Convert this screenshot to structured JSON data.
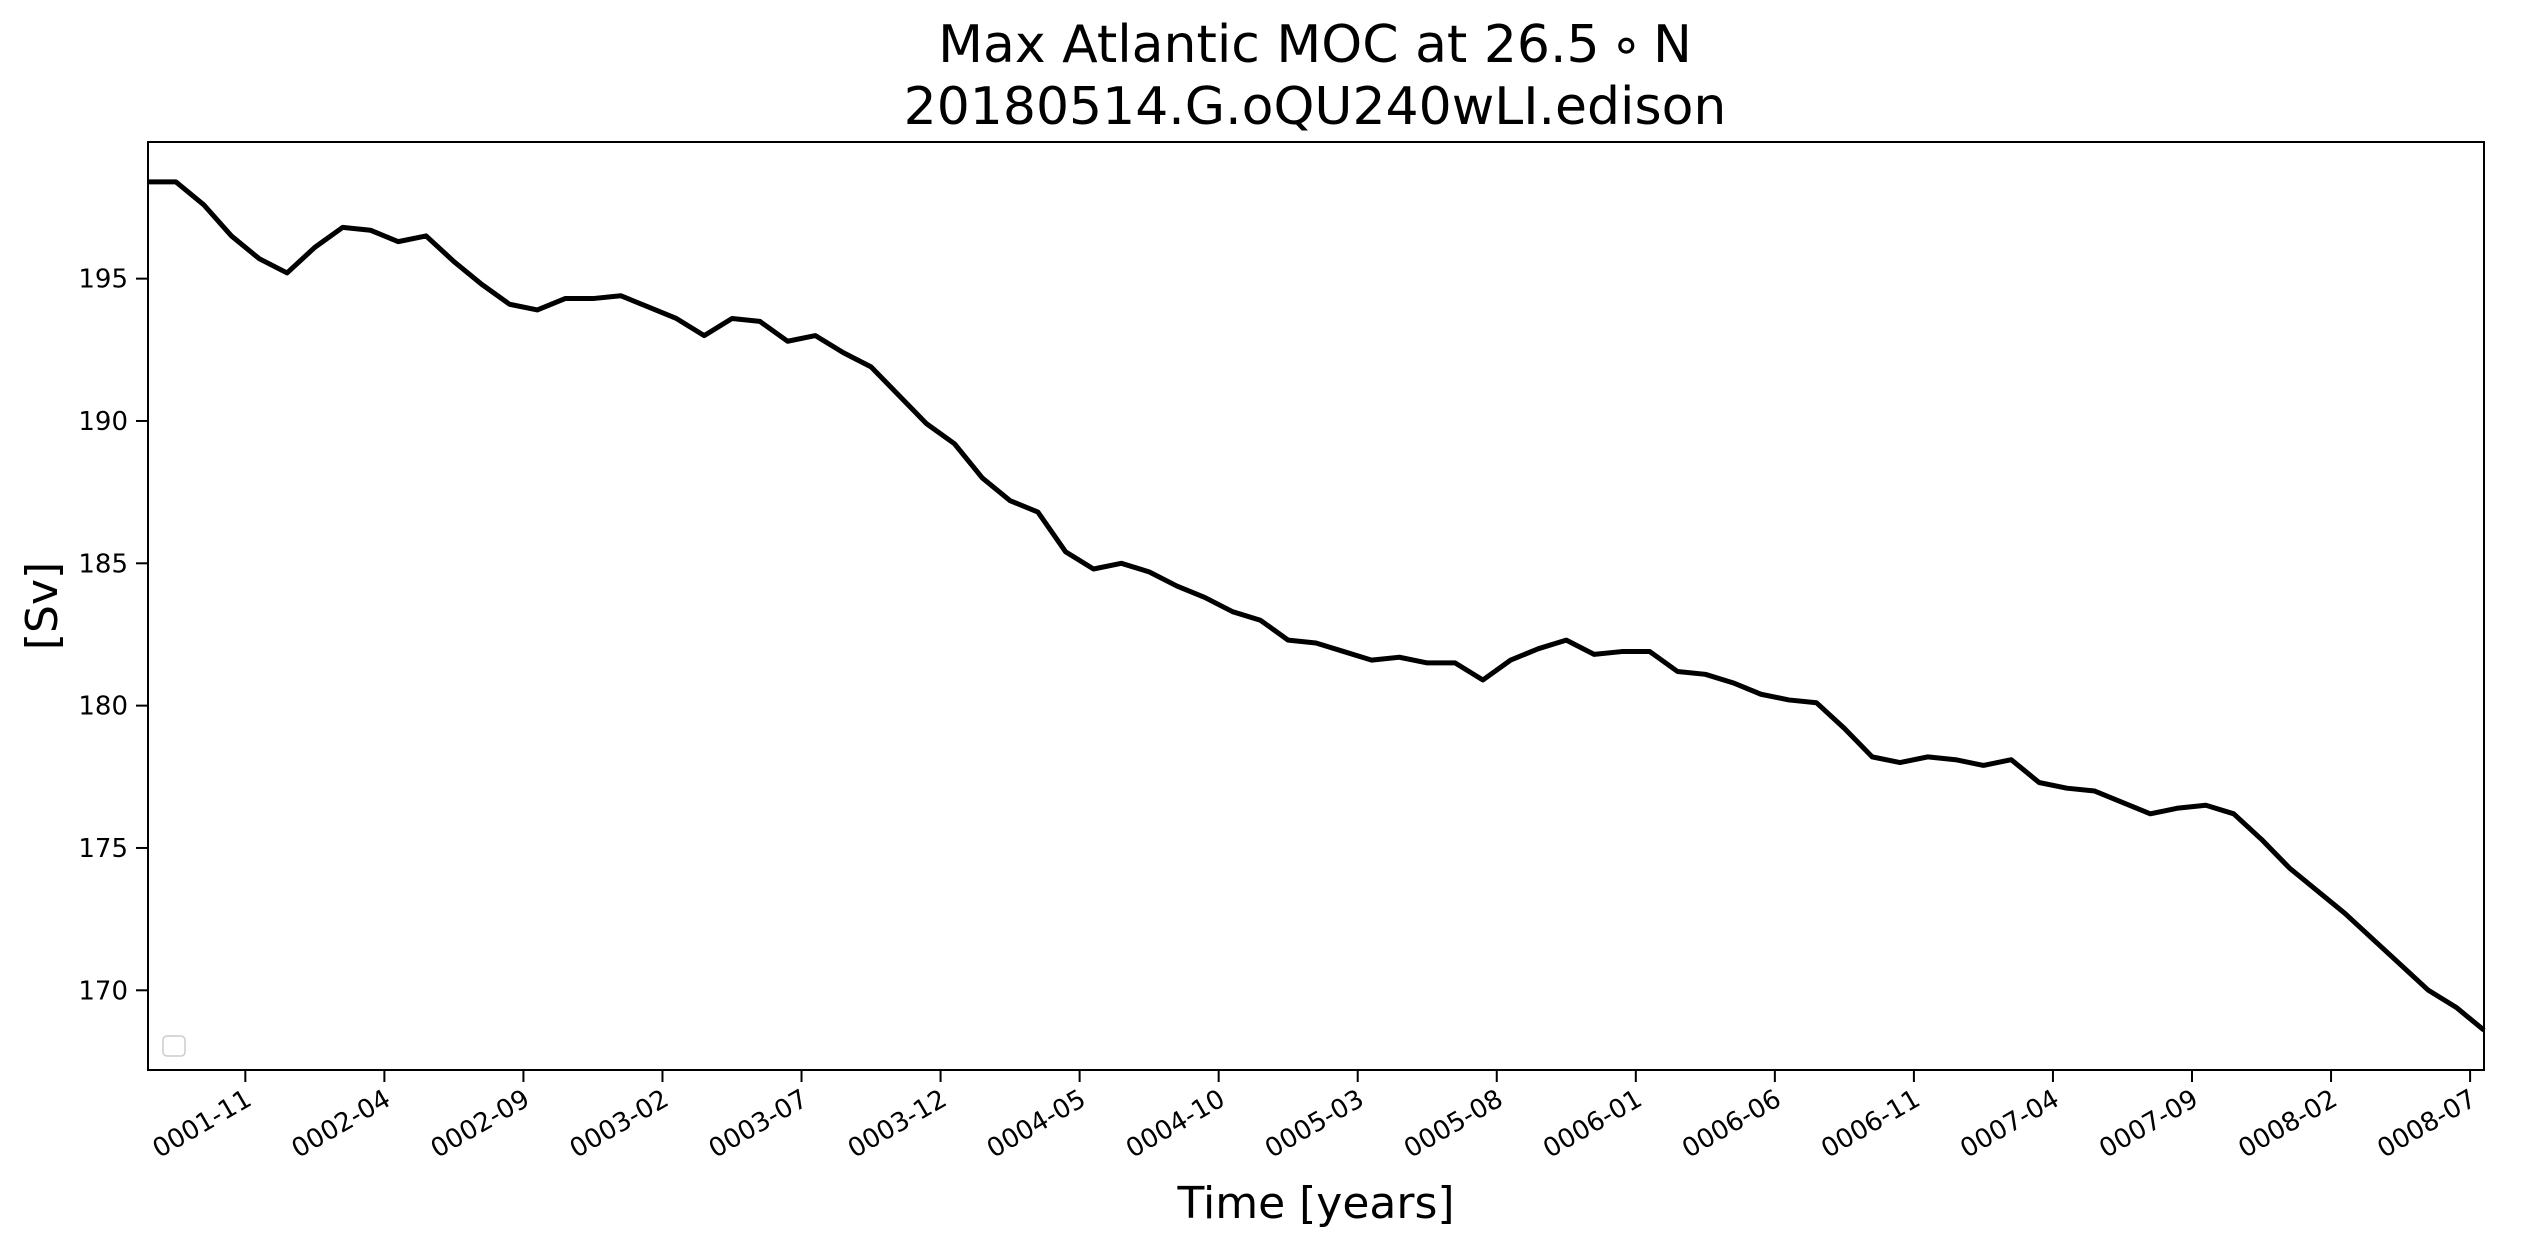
{
  "chart_data": {
    "type": "line",
    "title": "Max Atlantic MOC at 26.5$^\\circ$N",
    "title_display": "Max Atlantic MOC at 26.5 ∘ N",
    "subtitle": "20180514.G.oQU240wLI.edison",
    "xlabel": "Time [years]",
    "ylabel": "[Sv]",
    "xlim": [
      0.5,
      84.5
    ],
    "ylim": [
      167.2,
      199.8
    ],
    "y_ticks": [
      170,
      175,
      180,
      185,
      190,
      195
    ],
    "x_ticks": [
      {
        "month": 4,
        "label": "0001-11"
      },
      {
        "month": 9,
        "label": "0002-04"
      },
      {
        "month": 14,
        "label": "0002-09"
      },
      {
        "month": 19,
        "label": "0003-02"
      },
      {
        "month": 24,
        "label": "0003-07"
      },
      {
        "month": 29,
        "label": "0003-12"
      },
      {
        "month": 34,
        "label": "0004-05"
      },
      {
        "month": 39,
        "label": "0004-10"
      },
      {
        "month": 44,
        "label": "0005-03"
      },
      {
        "month": 49,
        "label": "0005-08"
      },
      {
        "month": 54,
        "label": "0006-01"
      },
      {
        "month": 59,
        "label": "0006-06"
      },
      {
        "month": 64,
        "label": "0006-11"
      },
      {
        "month": 69,
        "label": "0007-04"
      },
      {
        "month": 74,
        "label": "0007-09"
      },
      {
        "month": 79,
        "label": "0008-02"
      },
      {
        "month": 84,
        "label": "0008-07"
      }
    ],
    "legend": "lower-left, empty",
    "grid": false,
    "line_color": "#000000",
    "series": [
      {
        "x_start_month": 0.5,
        "x_step_months": 1,
        "values": [
          198.4,
          198.4,
          197.6,
          196.5,
          195.7,
          195.2,
          196.1,
          196.8,
          196.7,
          196.3,
          196.5,
          195.6,
          194.8,
          194.1,
          193.9,
          194.3,
          194.3,
          194.4,
          194.0,
          193.6,
          193.0,
          193.6,
          193.5,
          192.8,
          193.0,
          192.4,
          191.9,
          190.9,
          189.9,
          189.2,
          188.0,
          187.2,
          186.8,
          185.4,
          184.8,
          185.0,
          184.7,
          184.2,
          183.8,
          183.3,
          183.0,
          182.3,
          182.2,
          181.9,
          181.6,
          181.7,
          181.5,
          181.5,
          180.9,
          181.6,
          182.0,
          182.3,
          181.8,
          181.9,
          181.9,
          181.2,
          181.1,
          180.8,
          180.4,
          180.2,
          180.1,
          179.2,
          178.2,
          178.0,
          178.2,
          178.1,
          177.9,
          178.1,
          177.3,
          177.1,
          177.0,
          176.6,
          176.2,
          176.4,
          176.5,
          176.2,
          175.3,
          174.3,
          173.5,
          172.7,
          171.8,
          170.9,
          170.0,
          169.4,
          168.6
        ]
      }
    ]
  }
}
